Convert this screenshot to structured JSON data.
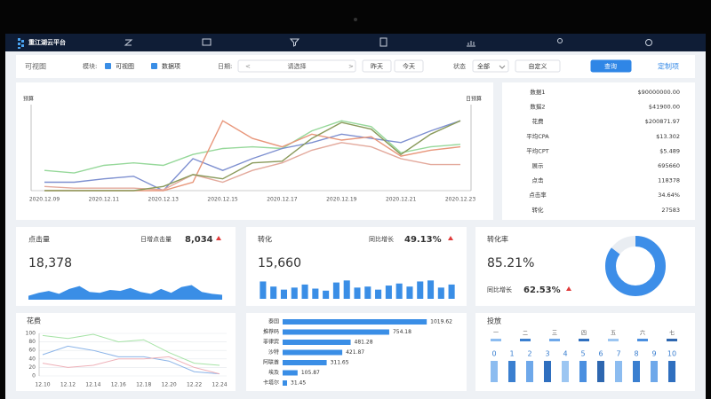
{
  "nav": {
    "logo": "重江湖云平台"
  },
  "filter": {
    "title": "可视图",
    "module_label": "模块:",
    "check1": "可视图",
    "check2": "数据项",
    "date_label": "日期:",
    "prev": "<",
    "date_placeholder": "请选择",
    "next": ">",
    "yesterday": "昨天",
    "today": "今天",
    "status_label": "状态",
    "status_value": "全部",
    "custom": "自定义",
    "query": "查询",
    "customize": "定制项"
  },
  "trend": {
    "type": "line",
    "left_label": "预算",
    "right_label": "日预算",
    "categories": [
      "2020.12.09",
      null,
      "2020.12.11",
      null,
      "2020.12.13",
      null,
      "2020.12.15",
      null,
      "2020.12.17",
      null,
      "2020.12.19",
      null,
      "2020.12.21",
      null,
      "2020.12.23"
    ],
    "ylim": [
      0,
      100
    ],
    "series": [
      {
        "color": "#96d89a",
        "values": [
          24,
          21,
          30,
          33,
          30,
          43,
          50,
          52,
          50,
          71,
          83,
          76,
          45,
          52,
          55
        ]
      },
      {
        "color": "#7d8fd0",
        "values": [
          10,
          10,
          14,
          17,
          0,
          38,
          24,
          38,
          50,
          57,
          67,
          62,
          57,
          71,
          83
        ]
      },
      {
        "color": "#e8967a",
        "values": [
          0,
          0,
          0,
          0,
          0,
          10,
          83,
          62,
          52,
          67,
          60,
          64,
          41,
          48,
          52
        ]
      },
      {
        "color": "#e3a99c",
        "values": [
          5,
          3,
          3,
          3,
          1,
          19,
          10,
          24,
          33,
          48,
          57,
          52,
          38,
          31,
          31
        ]
      },
      {
        "color": "#8a9a5b",
        "values": [
          0,
          0,
          0,
          0,
          5,
          19,
          14,
          33,
          35,
          62,
          81,
          73,
          43,
          67,
          83
        ]
      }
    ]
  },
  "stats": {
    "rows": [
      [
        "数据1",
        "$90000000.00"
      ],
      [
        "数据2",
        "$41900.00"
      ],
      [
        "花费",
        "$200871.97"
      ],
      [
        "平均CPA",
        "$13.302"
      ],
      [
        "平均CPT",
        "$5.489"
      ],
      [
        "展示",
        "695660"
      ],
      [
        "点击",
        "118378"
      ],
      [
        "点击率",
        "34.64%"
      ],
      [
        "转化",
        "27583"
      ]
    ]
  },
  "clicks": {
    "title": "点击量",
    "daily_label": "日增点击量",
    "daily_value": "8,034",
    "total": "18,378",
    "type": "area",
    "ylim": [
      0,
      100
    ],
    "color": "#3a8ee6",
    "values": [
      20,
      35,
      45,
      30,
      55,
      70,
      40,
      35,
      50,
      45,
      60,
      40,
      30,
      55,
      35,
      65,
      75,
      40,
      30,
      25
    ]
  },
  "conversion": {
    "title": "转化",
    "growth_label": "同比增长",
    "growth_value": "49.13%",
    "total": "15,660",
    "type": "bar",
    "ylim": [
      0,
      100
    ],
    "color": "#3a8ee6",
    "values": [
      85,
      60,
      45,
      55,
      70,
      50,
      40,
      80,
      90,
      55,
      60,
      45,
      65,
      75,
      60,
      85,
      90,
      55,
      70
    ]
  },
  "rate": {
    "title": "转化率",
    "value": 85.21,
    "value_label": "85.21%",
    "growth_label": "同比增长",
    "growth_value": "62.53%",
    "type": "pie",
    "color": "#3d8ee8"
  },
  "spend": {
    "title": "花费",
    "type": "line",
    "categories": [
      "12.10",
      "12.12",
      "12.14",
      "12.16",
      "12.18",
      "12.20",
      "12.22",
      "12.24"
    ],
    "ylim": [
      0,
      100
    ],
    "yticks": [
      0,
      20,
      40,
      60,
      80,
      100
    ],
    "grid": true,
    "series": [
      {
        "color": "#a6e3a6",
        "values": [
          95,
          88,
          98,
          80,
          85,
          55,
          30,
          25
        ]
      },
      {
        "color": "#8bb4e8",
        "values": [
          50,
          70,
          60,
          45,
          45,
          35,
          10,
          5
        ]
      },
      {
        "color": "#eeb0b8",
        "values": [
          30,
          20,
          25,
          40,
          40,
          45,
          20,
          5
        ]
      }
    ]
  },
  "countries": {
    "type": "bar",
    "orientation": "horizontal",
    "xlim": [
      0,
      1050
    ],
    "color": "#3a8ee6",
    "categories": [
      "泰国",
      "推荐码",
      "菲律宾",
      "沙特",
      "阿联酋",
      "埃及",
      "卡塔尔"
    ],
    "values": [
      1019.62,
      754.18,
      481.28,
      421.87,
      311.65,
      105.87,
      31.45
    ]
  },
  "delivery": {
    "title": "投放",
    "weekdays": [
      "一",
      "二",
      "三",
      "四",
      "五",
      "六",
      "七"
    ],
    "slots": [
      "0",
      "1",
      "2",
      "3",
      "4",
      "5",
      "6",
      "7",
      "8",
      "9",
      "10"
    ]
  }
}
